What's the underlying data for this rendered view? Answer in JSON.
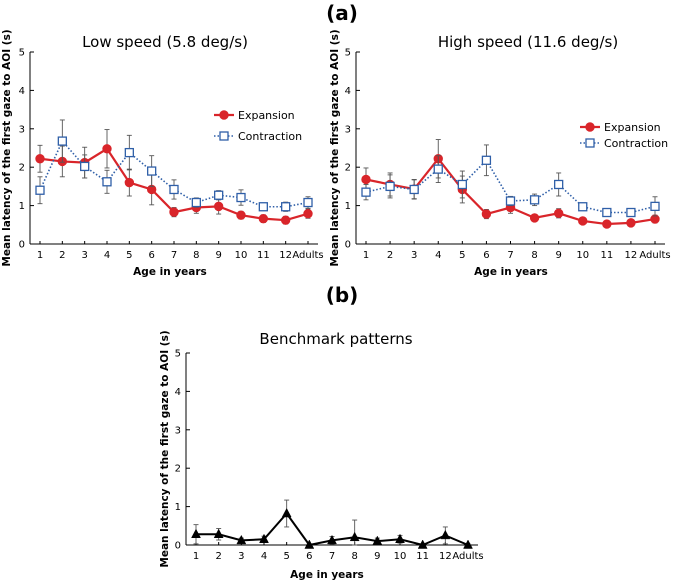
{
  "panel_labels": {
    "a": "(a)",
    "b": "(b)"
  },
  "colors": {
    "expansion": "#d9252a",
    "contraction": "#2f5fa8",
    "benchmark": "#000000"
  },
  "chart_data": [
    {
      "id": "low",
      "type": "line",
      "title": "Low speed (5.8 deg/s)",
      "xlabel": "Age in years",
      "ylabel": "Mean latency of the first gaze to AOI (s)",
      "ylim": [
        0,
        5
      ],
      "yticks": [
        "0",
        "1",
        "2",
        "3",
        "4",
        "5"
      ],
      "categories": [
        "1",
        "2",
        "3",
        "4",
        "5",
        "6",
        "7",
        "8",
        "9",
        "10",
        "11",
        "12",
        "Adults"
      ],
      "legend": {
        "position": "right"
      },
      "series": [
        {
          "name": "Expansion",
          "style": "solid-circle",
          "values": [
            2.22,
            2.15,
            2.12,
            2.48,
            1.6,
            1.42,
            0.83,
            0.95,
            0.98,
            0.75,
            0.66,
            0.62,
            0.79
          ],
          "errors": [
            0.35,
            0.4,
            0.4,
            0.5,
            0.35,
            0.4,
            0.12,
            0.15,
            0.2,
            0.1,
            0.1,
            0.1,
            0.12
          ]
        },
        {
          "name": "Contraction",
          "style": "dotted-square",
          "values": [
            1.4,
            2.68,
            2.02,
            1.62,
            2.38,
            1.9,
            1.42,
            1.08,
            1.27,
            1.21,
            0.97,
            0.97,
            1.08
          ],
          "errors": [
            0.35,
            0.55,
            0.3,
            0.3,
            0.45,
            0.4,
            0.25,
            0.12,
            0.12,
            0.2,
            0.1,
            0.12,
            0.15
          ]
        }
      ]
    },
    {
      "id": "high",
      "type": "line",
      "title": "High speed (11.6 deg/s)",
      "xlabel": "Age in years",
      "ylabel": "Mean latency of the first gaze to AOI (s)",
      "ylim": [
        0,
        5
      ],
      "yticks": [
        "0",
        "1",
        "2",
        "3",
        "4",
        "5"
      ],
      "categories": [
        "1",
        "2",
        "3",
        "4",
        "5",
        "6",
        "7",
        "8",
        "9",
        "10",
        "11",
        "12",
        "Adults"
      ],
      "legend": {
        "position": "right"
      },
      "series": [
        {
          "name": "Expansion",
          "style": "solid-circle",
          "values": [
            1.68,
            1.55,
            1.43,
            2.22,
            1.42,
            0.78,
            0.95,
            0.68,
            0.8,
            0.6,
            0.52,
            0.55,
            0.65
          ],
          "errors": [
            0.3,
            0.3,
            0.25,
            0.5,
            0.35,
            0.12,
            0.15,
            0.08,
            0.12,
            0.08,
            0.06,
            0.08,
            0.1
          ]
        },
        {
          "name": "Contraction",
          "style": "dotted-square",
          "values": [
            1.35,
            1.5,
            1.42,
            1.95,
            1.55,
            2.18,
            1.12,
            1.15,
            1.55,
            0.97,
            0.82,
            0.82,
            0.98
          ],
          "errors": [
            0.2,
            0.3,
            0.25,
            0.35,
            0.35,
            0.4,
            0.12,
            0.15,
            0.3,
            0.1,
            0.08,
            0.08,
            0.25
          ]
        }
      ]
    },
    {
      "id": "bench",
      "type": "line",
      "title": "Benchmark patterns",
      "xlabel": "Age in years",
      "ylabel": "Mean latency of the first gaze to AOI (s)",
      "ylim": [
        0,
        5
      ],
      "yticks": [
        "0",
        "1",
        "2",
        "3",
        "4",
        "5"
      ],
      "categories": [
        "1",
        "2",
        "3",
        "4",
        "5",
        "6",
        "7",
        "8",
        "9",
        "10",
        "11",
        "12",
        "Adults"
      ],
      "series": [
        {
          "name": "Benchmark",
          "style": "solid-triangle",
          "values": [
            0.28,
            0.28,
            0.12,
            0.15,
            0.82,
            0.0,
            0.12,
            0.2,
            0.1,
            0.15,
            0.0,
            0.25,
            0.0
          ],
          "errors": [
            0.25,
            0.15,
            0.06,
            0.08,
            0.35,
            0.03,
            0.1,
            0.45,
            0.08,
            0.1,
            0.03,
            0.22,
            0.03
          ]
        }
      ]
    }
  ]
}
